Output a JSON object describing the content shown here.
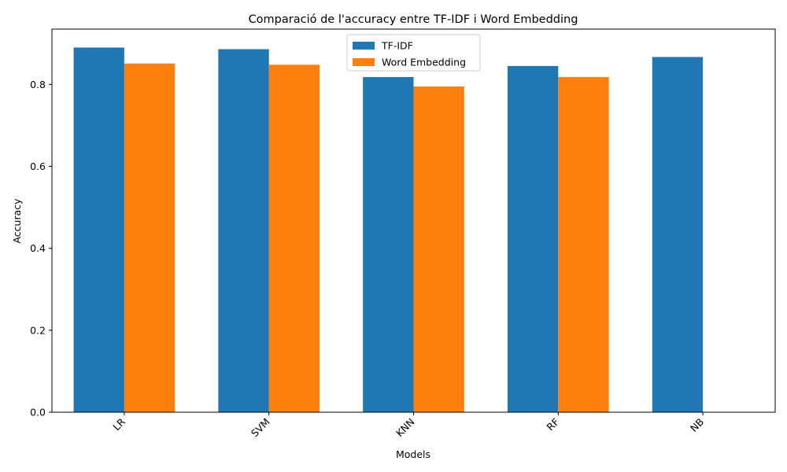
{
  "chart_data": {
    "type": "bar",
    "title": "Comparació de l'accuracy entre TF-IDF i Word Embedding",
    "xlabel": "Models",
    "ylabel": "Accuracy",
    "categories": [
      "LR",
      "SVM",
      "KNN",
      "RF",
      "NB"
    ],
    "series": [
      {
        "name": "TF-IDF",
        "color": "#1f77b4",
        "values": [
          0.89,
          0.886,
          0.818,
          0.845,
          0.867
        ]
      },
      {
        "name": "Word Embedding",
        "color": "#ff7f0e",
        "values": [
          0.851,
          0.848,
          0.795,
          0.818,
          null
        ]
      }
    ],
    "ylim": [
      0,
      0.935
    ],
    "yticks": [
      "0.0",
      "0.2",
      "0.4",
      "0.6",
      "0.8"
    ],
    "xtick_rotation_deg": 45,
    "grid": false,
    "legend_position": "upper center"
  }
}
